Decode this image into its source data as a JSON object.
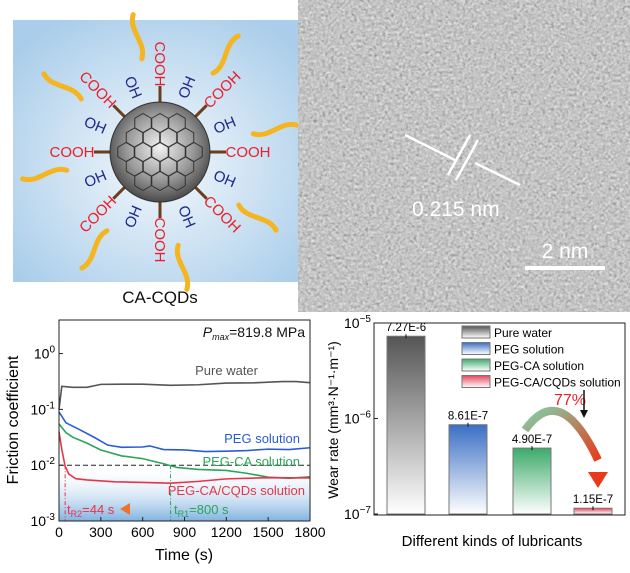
{
  "schematic": {
    "caption": "CA-CQDs",
    "groups": [
      "COOH",
      "OH"
    ],
    "colors": {
      "cooh": "#e8202a",
      "oh": "#1b2a8c",
      "background": "#b5d4ee",
      "chains": "#f4b521",
      "sticks": "#6b3e1a"
    }
  },
  "tem": {
    "spacing_label": "0.215 nm",
    "scale_label": "2 nm"
  },
  "chart_data": [
    {
      "type": "line",
      "xlabel": "Time (s)",
      "ylabel": "Friction coefficient",
      "annotation_p": "P",
      "annotation_p_sub": "max",
      "annotation_p_value": "=819.8 MPa",
      "xlim": [
        0,
        1800
      ],
      "ylim": [
        0.001,
        4
      ],
      "yscale": "log",
      "xticks": [
        0,
        300,
        600,
        900,
        1200,
        1500,
        1800
      ],
      "yticks": [
        {
          "v": 1,
          "base": "10",
          "exp": "0"
        },
        {
          "v": 0.1,
          "base": "10",
          "exp": "-1"
        },
        {
          "v": 0.01,
          "base": "10",
          "exp": "-2"
        },
        {
          "v": 0.001,
          "base": "10",
          "exp": "-3"
        }
      ],
      "threshold": 0.01,
      "tR2": {
        "t": 44,
        "label": "t",
        "sub": "R2",
        "value": "=44 s"
      },
      "tR1": {
        "t": 800,
        "label": "t",
        "sub": "R1",
        "value": "=800 s"
      },
      "series": [
        {
          "name": "Pure water",
          "color": "#555555",
          "x": [
            0,
            20,
            100,
            200,
            300,
            450,
            600,
            800,
            1000,
            1200,
            1400,
            1600,
            1700,
            1800
          ],
          "y": [
            0.1,
            0.27,
            0.26,
            0.25,
            0.27,
            0.27,
            0.28,
            0.28,
            0.29,
            0.3,
            0.29,
            0.3,
            0.31,
            0.31
          ]
        },
        {
          "name": "PEG solution",
          "color": "#2a5bd7",
          "x": [
            0,
            50,
            150,
            250,
            350,
            450,
            600,
            650,
            750,
            900,
            1050,
            1200,
            1350,
            1500,
            1650,
            1800
          ],
          "y": [
            0.09,
            0.06,
            0.045,
            0.032,
            0.022,
            0.02,
            0.021,
            0.023,
            0.02,
            0.019,
            0.017,
            0.017,
            0.018,
            0.02,
            0.02,
            0.021
          ]
        },
        {
          "name": "PEG-CA solution",
          "color": "#2aa55a",
          "x": [
            0,
            50,
            100,
            200,
            300,
            450,
            600,
            750,
            850,
            1000,
            1200,
            1350,
            1500,
            1650,
            1800
          ],
          "y": [
            0.055,
            0.04,
            0.033,
            0.025,
            0.018,
            0.014,
            0.013,
            0.011,
            0.0095,
            0.0085,
            0.0078,
            0.0068,
            0.006,
            0.006,
            0.0065
          ]
        },
        {
          "name": "PEG-CA/CQDs solution",
          "color": "#e8344a",
          "x": [
            0,
            20,
            44,
            70,
            120,
            200,
            400,
            600,
            800,
            1000,
            1200,
            1500,
            1800
          ],
          "y": [
            0.04,
            0.02,
            0.01,
            0.007,
            0.0055,
            0.0052,
            0.005,
            0.0051,
            0.005,
            0.0052,
            0.0055,
            0.0057,
            0.0058
          ]
        }
      ]
    },
    {
      "type": "bar",
      "xlabel": "Different kinds of lubricants",
      "ylabel": "Wear rate (mm³·N⁻¹·m⁻¹)",
      "yscale": "log",
      "ylim": [
        1e-07,
        1e-05
      ],
      "yticks": [
        {
          "v": 1e-05,
          "base": "10",
          "exp": "−5"
        },
        {
          "v": 1e-06,
          "base": "10",
          "exp": "−6"
        },
        {
          "v": 1e-07,
          "base": "10",
          "exp": "−7"
        }
      ],
      "legend": "top-right",
      "categories": [
        "Pure water",
        "PEG solution",
        "PEG-CA solution",
        "PEG-CA/CQDs solution"
      ],
      "values": [
        7.27e-06,
        8.61e-07,
        4.9e-07,
        1.15e-07
      ],
      "data_labels": [
        "7.27E-6",
        "8.61E-7",
        "4.90E-7",
        "1.15E-7"
      ],
      "colors": [
        "#555555",
        "#3a6fc4",
        "#3caa6a",
        "#e8455a"
      ],
      "reduction_label": "77%"
    }
  ]
}
